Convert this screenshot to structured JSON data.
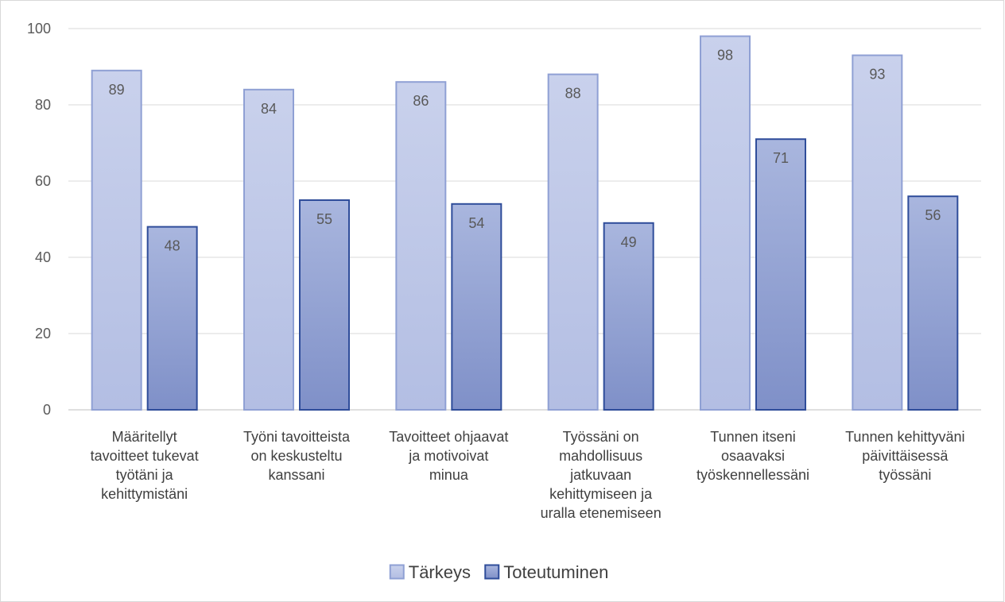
{
  "chart_data": {
    "type": "bar",
    "categories": [
      [
        "Määritellyt",
        "tavoitteet tukevat",
        "työtäni ja",
        "kehittymistäni"
      ],
      [
        "Työni tavoitteista",
        "on keskusteltu",
        "kanssani"
      ],
      [
        "Tavoitteet ohjaavat",
        "ja motivoivat",
        "minua"
      ],
      [
        "Työssäni on",
        "mahdollisuus",
        "jatkuvaan",
        "kehittymiseen ja",
        "uralla etenemiseen"
      ],
      [
        "Tunnen itseni",
        "osaavaksi",
        "työskennellessäni"
      ],
      [
        "Tunnen kehittyväni",
        "päivittäisessä",
        "työssäni"
      ]
    ],
    "series": [
      {
        "name": "Tärkeys",
        "values": [
          89,
          84,
          86,
          88,
          98,
          93
        ],
        "fill_top": "#c9d1ec",
        "fill_bottom": "#b3bee3",
        "stroke": "#8fa0d4"
      },
      {
        "name": "Toteutuminen",
        "values": [
          48,
          55,
          54,
          49,
          71,
          56
        ],
        "fill_top": "#a9b6de",
        "fill_bottom": "#7f90c8",
        "stroke": "#2f4d9a"
      }
    ],
    "ylim": [
      0,
      100
    ],
    "yticks": [
      0,
      20,
      40,
      60,
      80,
      100
    ],
    "grid": true,
    "data_labels": true,
    "legend_position": "bottom",
    "title": "",
    "xlabel": "",
    "ylabel": ""
  }
}
